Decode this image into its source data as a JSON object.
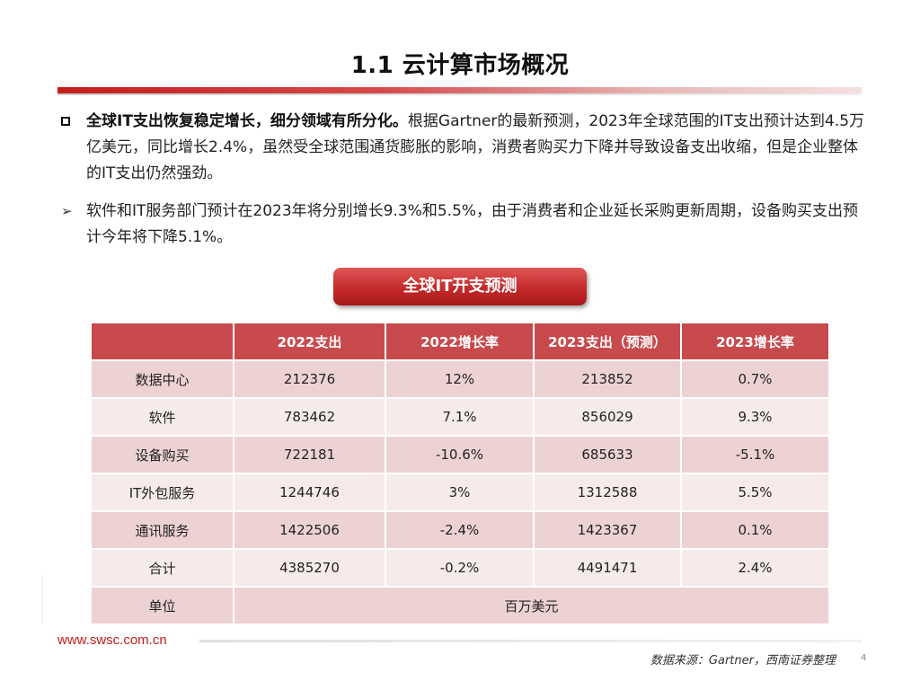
{
  "title": "1.1 云计算市场概况",
  "bullets": {
    "main_bold": "全球IT支出恢复稳定增长，细分领域有所分化。",
    "main_text": "根据Gartner的最新预测，2023年全球范围的IT支出预计达到4.5万亿美元，同比增长2.4%，虽然受全球范围通货膨胀的影响，消费者购买力下降并导致设备支出收缩，但是企业整体的IT支出仍然强劲。",
    "sub_marker": "➢",
    "sub_text": "软件和IT服务部门预计在2023年将分别增长9.3%和5.5%，由于消费者和企业延长采购更新周期，设备购买支出预计今年将下降5.1%。"
  },
  "table_title": "全球IT开支预测",
  "table": {
    "headers": [
      "",
      "2022支出",
      "2022增长率",
      "2023支出（预测）",
      "2023增长率"
    ],
    "rows": [
      [
        "数据中心",
        "212376",
        "12%",
        "213852",
        "0.7%"
      ],
      [
        "软件",
        "783462",
        "7.1%",
        "856029",
        "9.3%"
      ],
      [
        "设备购买",
        "722181",
        "-10.6%",
        "685633",
        "-5.1%"
      ],
      [
        "IT外包服务",
        "1244746",
        "3%",
        "1312588",
        "5.5%"
      ],
      [
        "通讯服务",
        "1422506",
        "-2.4%",
        "1423367",
        "0.1%"
      ],
      [
        "合计",
        "4385270",
        "-0.2%",
        "4491471",
        "2.4%"
      ]
    ],
    "unit_label": "单位",
    "unit_value": "百万美元"
  },
  "footer": {
    "url": "www.swsc.com.cn",
    "source": "数据来源：Gartner，西南证券整理",
    "page": "4"
  },
  "colors": {
    "accent_red": "#c41d1d",
    "header_red": "#c84a4d",
    "row_dark": "#edd2d3",
    "row_light": "#f7eaea"
  }
}
